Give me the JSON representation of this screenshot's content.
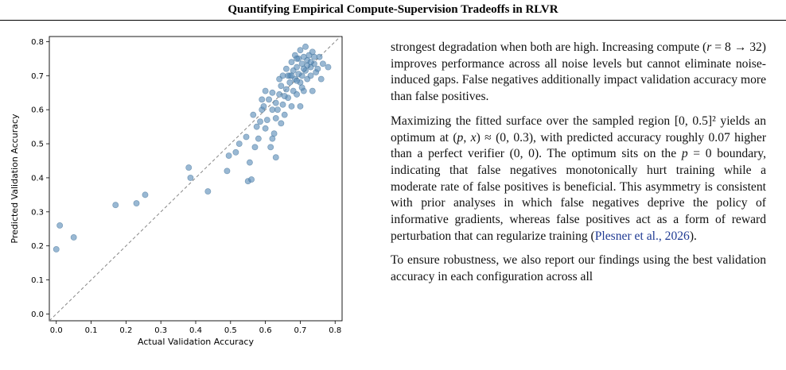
{
  "header": {
    "title": "Quantifying Empirical Compute-Supervision Tradeoffs in RLVR"
  },
  "chart_data": {
    "type": "scatter",
    "title": "",
    "xlabel": "Actual Validation Accuracy",
    "ylabel": "Predicted Validation Accuracy",
    "xlim": [
      -0.02,
      0.82
    ],
    "ylim": [
      -0.02,
      0.815
    ],
    "xticks": [
      0.0,
      0.1,
      0.2,
      0.3,
      0.4,
      0.5,
      0.6,
      0.7,
      0.8
    ],
    "yticks": [
      0.0,
      0.1,
      0.2,
      0.3,
      0.4,
      0.5,
      0.6,
      0.7,
      0.8
    ],
    "xtick_labels": [
      "0.0",
      "0.1",
      "0.2",
      "0.3",
      "0.4",
      "0.5",
      "0.6",
      "0.7",
      "0.8"
    ],
    "ytick_labels": [
      "0.0",
      "0.1",
      "0.2",
      "0.3",
      "0.4",
      "0.5",
      "0.6",
      "0.7",
      "0.8"
    ],
    "grid": false,
    "reference_line": "y = x (dashed gray)",
    "point_color": "#5b8db8",
    "points": [
      [
        0.0,
        0.19
      ],
      [
        0.01,
        0.26
      ],
      [
        0.05,
        0.225
      ],
      [
        0.17,
        0.32
      ],
      [
        0.23,
        0.325
      ],
      [
        0.255,
        0.35
      ],
      [
        0.38,
        0.43
      ],
      [
        0.385,
        0.4
      ],
      [
        0.435,
        0.36
      ],
      [
        0.49,
        0.42
      ],
      [
        0.495,
        0.465
      ],
      [
        0.515,
        0.475
      ],
      [
        0.525,
        0.5
      ],
      [
        0.545,
        0.52
      ],
      [
        0.55,
        0.39
      ],
      [
        0.555,
        0.445
      ],
      [
        0.56,
        0.395
      ],
      [
        0.565,
        0.585
      ],
      [
        0.57,
        0.49
      ],
      [
        0.575,
        0.55
      ],
      [
        0.58,
        0.515
      ],
      [
        0.585,
        0.565
      ],
      [
        0.59,
        0.6
      ],
      [
        0.595,
        0.61
      ],
      [
        0.6,
        0.545
      ],
      [
        0.6,
        0.655
      ],
      [
        0.605,
        0.57
      ],
      [
        0.61,
        0.63
      ],
      [
        0.615,
        0.49
      ],
      [
        0.62,
        0.515
      ],
      [
        0.62,
        0.65
      ],
      [
        0.625,
        0.53
      ],
      [
        0.63,
        0.46
      ],
      [
        0.63,
        0.575
      ],
      [
        0.63,
        0.62
      ],
      [
        0.635,
        0.6
      ],
      [
        0.64,
        0.645
      ],
      [
        0.64,
        0.69
      ],
      [
        0.645,
        0.56
      ],
      [
        0.645,
        0.67
      ],
      [
        0.65,
        0.615
      ],
      [
        0.65,
        0.7
      ],
      [
        0.655,
        0.585
      ],
      [
        0.66,
        0.66
      ],
      [
        0.66,
        0.72
      ],
      [
        0.665,
        0.635
      ],
      [
        0.67,
        0.68
      ],
      [
        0.67,
        0.7
      ],
      [
        0.675,
        0.61
      ],
      [
        0.675,
        0.74
      ],
      [
        0.68,
        0.655
      ],
      [
        0.68,
        0.715
      ],
      [
        0.685,
        0.69
      ],
      [
        0.685,
        0.76
      ],
      [
        0.69,
        0.645
      ],
      [
        0.69,
        0.725
      ],
      [
        0.695,
        0.705
      ],
      [
        0.695,
        0.75
      ],
      [
        0.7,
        0.61
      ],
      [
        0.7,
        0.68
      ],
      [
        0.7,
        0.775
      ],
      [
        0.705,
        0.7
      ],
      [
        0.705,
        0.735
      ],
      [
        0.71,
        0.655
      ],
      [
        0.71,
        0.755
      ],
      [
        0.715,
        0.715
      ],
      [
        0.715,
        0.785
      ],
      [
        0.72,
        0.69
      ],
      [
        0.72,
        0.745
      ],
      [
        0.725,
        0.76
      ],
      [
        0.73,
        0.7
      ],
      [
        0.73,
        0.725
      ],
      [
        0.735,
        0.655
      ],
      [
        0.735,
        0.77
      ],
      [
        0.74,
        0.735
      ],
      [
        0.745,
        0.71
      ],
      [
        0.75,
        0.72
      ],
      [
        0.755,
        0.755
      ],
      [
        0.76,
        0.69
      ],
      [
        0.765,
        0.735
      ],
      [
        0.78,
        0.725
      ],
      [
        0.59,
        0.63
      ],
      [
        0.62,
        0.6
      ],
      [
        0.655,
        0.64
      ],
      [
        0.665,
        0.7
      ],
      [
        0.675,
        0.7
      ],
      [
        0.69,
        0.685
      ],
      [
        0.705,
        0.665
      ],
      [
        0.72,
        0.73
      ],
      [
        0.74,
        0.755
      ],
      [
        0.69,
        0.75
      ],
      [
        0.71,
        0.72
      ],
      [
        0.73,
        0.74
      ]
    ]
  },
  "body_text": {
    "p1": [
      {
        "t": "strongest degradation when both are high. Increasing compute ("
      },
      {
        "t": "r",
        "m": true
      },
      {
        "t": " = 8 → 32) improves performance across all noise levels but cannot eliminate noise-induced gaps. False negatives additionally impact validation accuracy more than false positives."
      }
    ],
    "p2": [
      {
        "t": "Maximizing the fitted surface over the sampled region [0, 0.5]² yields an optimum at ("
      },
      {
        "t": "p",
        "m": true
      },
      {
        "t": ", "
      },
      {
        "t": "x",
        "m": true
      },
      {
        "t": ") ≈ (0, 0.3), with predicted accuracy roughly 0.07 higher than a perfect verifier (0, 0). The optimum sits on the "
      },
      {
        "t": "p",
        "m": true
      },
      {
        "t": " = 0 boundary, indicating that false negatives monotonically hurt training while a moderate rate of false positives is beneficial. This asymmetry is consistent with prior analyses in which false negatives deprive the policy of informative gradients, whereas false positives act as a form of reward perturbation that can regularize training ("
      },
      {
        "t": "Plesner et al., 2026",
        "c": true
      },
      {
        "t": ")."
      }
    ],
    "p3": [
      {
        "t": "To ensure robustness, we also report our findings using the best validation accuracy in each configuration across all"
      }
    ]
  }
}
